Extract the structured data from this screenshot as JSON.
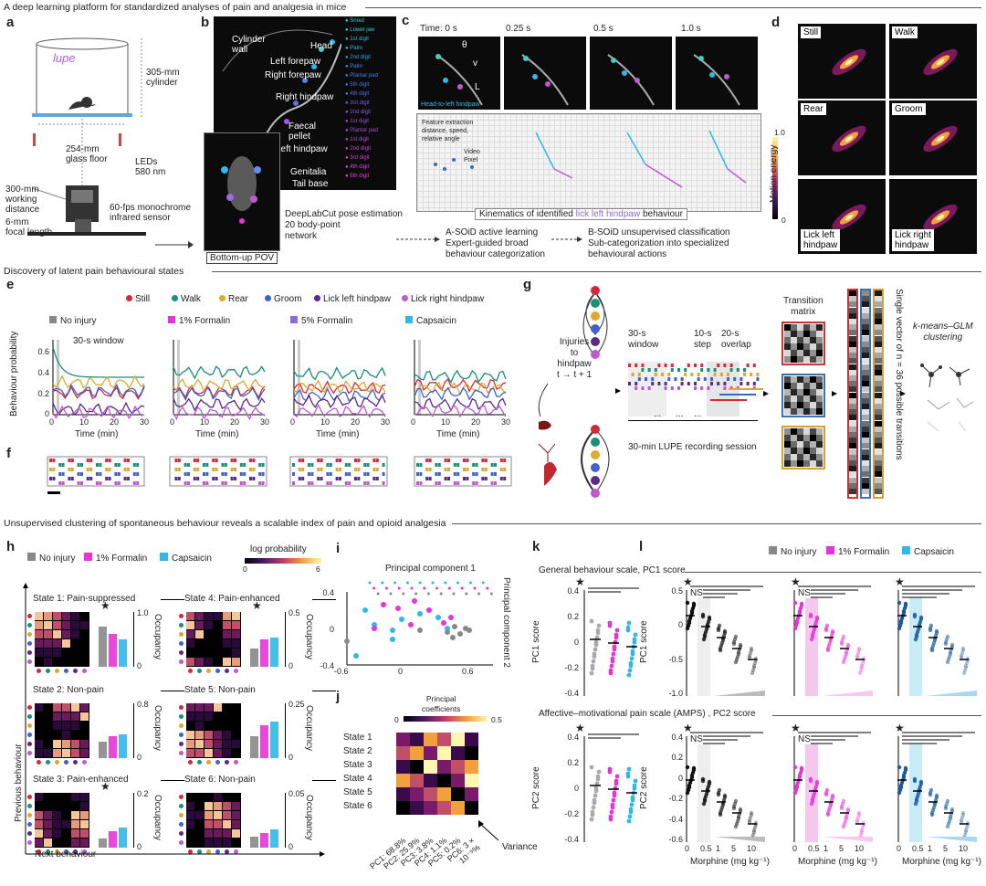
{
  "sections": {
    "s1": "A deep learning platform for standardized analyses of pain and analgesia in mice",
    "s2": "Discovery of latent pain behavioural states",
    "s3": "Unsupervised clustering of spontaneous behaviour reveals a scalable index of pain and opioid analgesia"
  },
  "panel_letters": [
    "a",
    "b",
    "c",
    "d",
    "e",
    "f",
    "g",
    "h",
    "i",
    "j",
    "k",
    "l"
  ],
  "panel_a": {
    "logo": "lupe",
    "cylinder": "305-mm\ncylinder",
    "glass": "254-mm\nglass floor",
    "leds": "LEDs\n580 nm",
    "working": "300-mm\nworking\ndistance",
    "sensor": "60-fps monochrome\ninfrared sensor",
    "focal": "6-mm\nfocal length"
  },
  "panel_b": {
    "cylinder_wall": "Cylinder\nwall",
    "head": "Head",
    "left_forepaw": "Left forepaw",
    "right_forepaw": "Right forepaw",
    "right_hindpaw": "Right hindpaw",
    "faecal": "Faecal\npellet",
    "left_hindpaw": "Left hindpaw",
    "genitalia": "Genitalia",
    "tail_base": "Tail base",
    "pov": "Bottom-up POV",
    "keypoints": [
      "Snout",
      "Lower jaw",
      "1st digit",
      "Palm",
      "2nd digit",
      "Palm",
      "Plantar pad",
      "5th digit",
      "4th digit",
      "3rd digit",
      "2nd digit",
      "1st digit",
      "Plantar pad",
      "1st digit",
      "2nd digit",
      "3rd digit",
      "4th digit",
      "5th digit"
    ],
    "caption": "DeepLabCut pose estimation\n20 body-point\nnetwork"
  },
  "panel_c": {
    "times": [
      "Time: 0 s",
      "0.25 s",
      "0.5 s",
      "1.0 s"
    ],
    "theta": "θ",
    "v": "v",
    "L": "L",
    "head_to": "Head-to-left hindpaw",
    "feature": "Feature extraction\ndistance, speed,\nrelative angle",
    "video_pixel": "Video\nPixel",
    "kinematics_pre": "Kinematics of identified ",
    "kinematics_hl": "lick left hindpaw",
    "kinematics_post": " behaviour",
    "asoid": "A-SOiD active learning\nExpert-guided broad\nbehaviour categorization",
    "bsoid": "B-SOiD unsupervised classification\nSub-categorization into specialized\nbehavioural actions"
  },
  "panel_d": {
    "labels": [
      "Still",
      "Walk",
      "Rear",
      "Groom",
      "Lick left\nhindpaw",
      "Lick right\nhindpaw"
    ],
    "cbar_max": "1.0",
    "cbar_min": "0",
    "cbar_label": "Motion energy"
  },
  "panel_e": {
    "legend": [
      {
        "name": "Still",
        "color": "#d62839"
      },
      {
        "name": "Walk",
        "color": "#1a8f7a"
      },
      {
        "name": "Rear",
        "color": "#e0a82e"
      },
      {
        "name": "Groom",
        "color": "#3f63c9"
      },
      {
        "name": "Lick left hindpaw",
        "color": "#5a2a8a"
      },
      {
        "name": "Lick right hindpaw",
        "color": "#c157d1"
      }
    ],
    "conditions": [
      {
        "name": "No injury",
        "color": "#888888"
      },
      {
        "name": "1% Formalin",
        "color": "#e833d8"
      },
      {
        "name": "5% Formalin",
        "color": "#8c6be0"
      },
      {
        "name": "Capsaicin",
        "color": "#2fb8e8"
      }
    ],
    "window": "30-s window",
    "ylabel": "Behaviour probability",
    "xlabel": "Time (min)",
    "yticks": [
      "0.6",
      "0.4",
      "0.2",
      "0"
    ],
    "xticks": [
      "0",
      "10",
      "20",
      "30"
    ]
  },
  "panel_g": {
    "injuries": "Injuries\nto\nhindpaw\nt → t + 1",
    "window30": "30-s\nwindow",
    "step": "10-s\nstep",
    "overlap": "20-s\noverlap",
    "session": "30-min LUPE recording session",
    "transition": "Transition\nmatrix",
    "single_vector": "Single vector of  n = 36 possible transitions",
    "kmeans": "k-means–GLM\nclustering",
    "dots": "..."
  },
  "panel_h": {
    "legend": [
      {
        "name": "No injury",
        "color": "#888888"
      },
      {
        "name": "1% Formalin",
        "color": "#e833d8"
      },
      {
        "name": "Capsaicin",
        "color": "#2fb8e8"
      }
    ],
    "logprob": "log probability",
    "lp_min": "0",
    "lp_max": "6",
    "states": [
      {
        "title": "State 1: Pain-suppressed",
        "ymax": "1.0",
        "star": true
      },
      {
        "title": "State 4: Pain-enhanced",
        "ymax": "0.5",
        "star": true
      },
      {
        "title": "State 2: Non-pain",
        "ymax": "0.8",
        "star": false
      },
      {
        "title": "State 5: Non-pain",
        "ymax": "0.25",
        "star": false
      },
      {
        "title": "State 3: Pain-enhanced",
        "ymax": "0.2",
        "star": true
      },
      {
        "title": "State 6: Non-pain",
        "ymax": "0.05",
        "star": false
      }
    ],
    "zero": "0",
    "occupancy": "Occupancy",
    "previous": "Previous behaviour",
    "next": "Next behaviour"
  },
  "panel_i": {
    "pc1": "Principal component 1",
    "pc2": "Principal component 2",
    "yticks": [
      "0.4",
      "0",
      "-0.4"
    ],
    "xticks": [
      "-0.6",
      "0",
      "0.6"
    ]
  },
  "panel_j": {
    "title": "Principal\ncoefficients",
    "cmin": "0",
    "cmax": "0.5",
    "states": [
      "State 1",
      "State 2",
      "State 3",
      "State 4",
      "State 5",
      "State 6"
    ],
    "pcs": [
      "PC1: 68.8%",
      "PC2: 25.9%",
      "PC3: 3.8%",
      "PC4: 1.1%",
      "PC5: 0.2%",
      "PC6: 3 × 10⁻⁵%"
    ],
    "variance": "Variance"
  },
  "panel_k": {
    "title1": "General behaviour scale, PC1 score",
    "title2": "Affective–motivational pain scale (AMPS) , PC2 score",
    "ylabel1": "PC1 score",
    "ylabel2": "PC2 score",
    "yticks1": [
      "0.4",
      "0.2",
      "0",
      "-0.2",
      "-0.4"
    ],
    "yticks2": [
      "0.4",
      "0.2",
      "0",
      "-0.2",
      "-0.4"
    ]
  },
  "panel_l": {
    "legend": [
      {
        "name": "No injury",
        "color": "#888888"
      },
      {
        "name": "1% Formalin",
        "color": "#e833d8"
      },
      {
        "name": "Capsaicin",
        "color": "#2fb8e8"
      }
    ],
    "ns": "NS",
    "ylabel1": "PC1 score",
    "ylabel2": "PC2 score",
    "yticks1": [
      "0.5",
      "0",
      "-0.5",
      "-1.0"
    ],
    "yticks2": [
      "0.4",
      "0.2",
      "0",
      "-0.2",
      "-0.4",
      "-0.6"
    ],
    "xticks": [
      "0",
      "0.5",
      "1",
      "5",
      "10"
    ],
    "xlabel": "Morphine (mg kg⁻¹)"
  }
}
